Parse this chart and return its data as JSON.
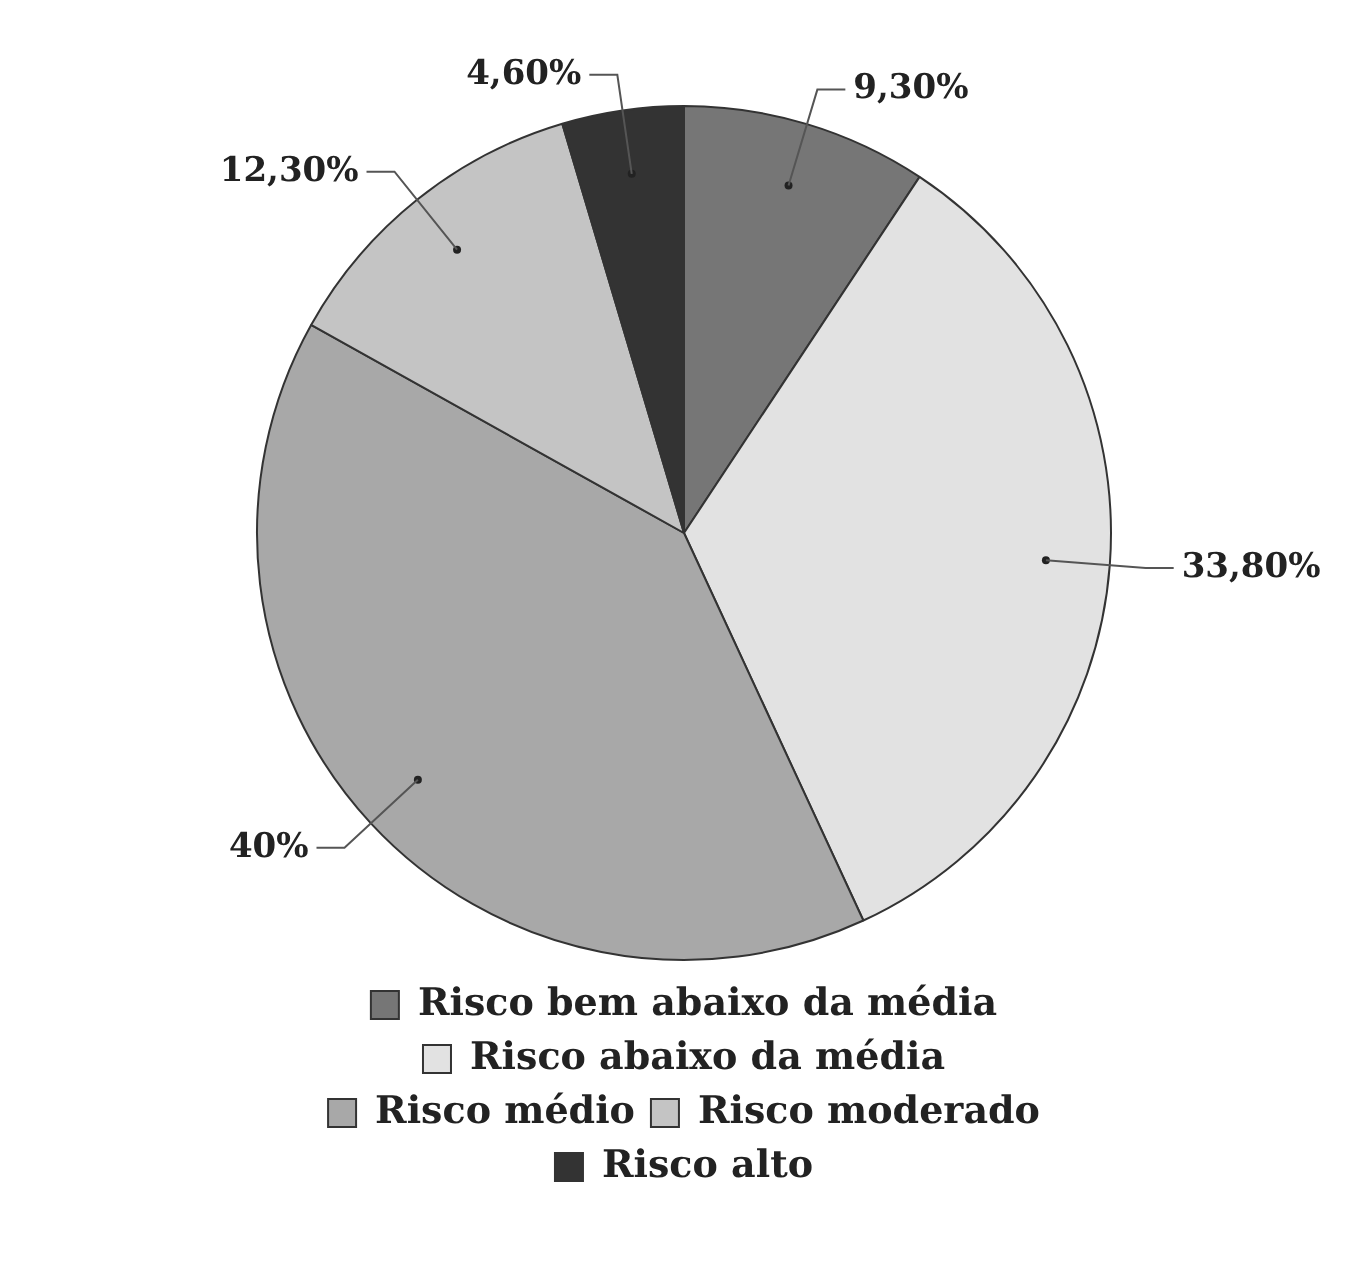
{
  "chart_data": {
    "type": "pie",
    "categories": [
      "Risco bem abaixo da média",
      "Risco abaixo da média",
      "Risco médio",
      "Risco moderado",
      "Risco alto"
    ],
    "values": [
      9.3,
      33.8,
      40,
      12.3,
      4.6
    ],
    "value_labels": [
      "9,30%",
      "33,80%",
      "40%",
      "12,30%",
      "4,60%"
    ],
    "colors": [
      "#767676",
      "#e2e2e2",
      "#a8a8a8",
      "#c4c4c4",
      "#333333"
    ],
    "legend": "bottom"
  }
}
